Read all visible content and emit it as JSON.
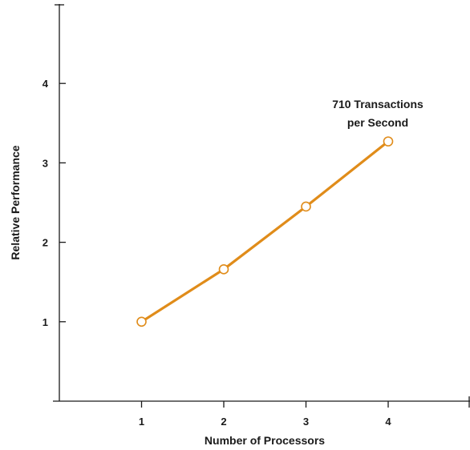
{
  "chart_data": {
    "type": "line",
    "xlabel": "Number of Processors",
    "ylabel": "Relative Performance",
    "x": [
      1,
      2,
      3,
      4
    ],
    "series": [
      {
        "values": [
          1.0,
          1.66,
          2.45,
          3.27
        ]
      }
    ],
    "x_ticks": [
      "1",
      "2",
      "3",
      "4"
    ],
    "y_ticks": [
      "1",
      "2",
      "3",
      "4"
    ],
    "xlim": [
      0,
      5
    ],
    "ylim": [
      0,
      5
    ],
    "annotation": {
      "line1": "710 Transactions",
      "line2": "per Second",
      "at_x": 4
    },
    "grid": false,
    "colors": {
      "line": "#E08C1A",
      "marker_fill": "#ffffff",
      "axis": "#1a1a1a"
    }
  }
}
